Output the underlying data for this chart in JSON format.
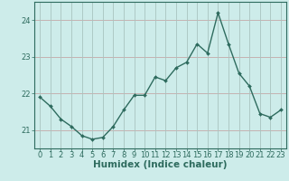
{
  "x": [
    0,
    1,
    2,
    3,
    4,
    5,
    6,
    7,
    8,
    9,
    10,
    11,
    12,
    13,
    14,
    15,
    16,
    17,
    18,
    19,
    20,
    21,
    22,
    23
  ],
  "y": [
    21.9,
    21.65,
    21.3,
    21.1,
    20.85,
    20.75,
    20.8,
    21.1,
    21.55,
    21.95,
    21.95,
    22.45,
    22.35,
    22.7,
    22.85,
    23.35,
    23.1,
    24.2,
    23.35,
    22.55,
    22.2,
    21.45,
    21.35,
    21.55
  ],
  "xlabel": "Humidex (Indice chaleur)",
  "ylim": [
    20.5,
    24.5
  ],
  "xlim": [
    -0.5,
    23.5
  ],
  "yticks": [
    21,
    22,
    23,
    24
  ],
  "xticks": [
    0,
    1,
    2,
    3,
    4,
    5,
    6,
    7,
    8,
    9,
    10,
    11,
    12,
    13,
    14,
    15,
    16,
    17,
    18,
    19,
    20,
    21,
    22,
    23
  ],
  "xtick_labels": [
    "0",
    "1",
    "2",
    "3",
    "4",
    "5",
    "6",
    "7",
    "8",
    "9",
    "10",
    "11",
    "12",
    "13",
    "14",
    "15",
    "16",
    "17",
    "18",
    "19",
    "20",
    "21",
    "22",
    "23"
  ],
  "line_color": "#2e6b5e",
  "marker": "D",
  "marker_size": 2.0,
  "bg_color": "#cdecea",
  "hgrid_color": "#c4a8a8",
  "vgrid_color": "#a8c4c0",
  "axes_color": "#2e6b5e",
  "label_color": "#2e6b5e",
  "tick_color": "#2e6b5e",
  "xlabel_fontsize": 7.5,
  "tick_fontsize": 6.0,
  "linewidth": 1.0
}
